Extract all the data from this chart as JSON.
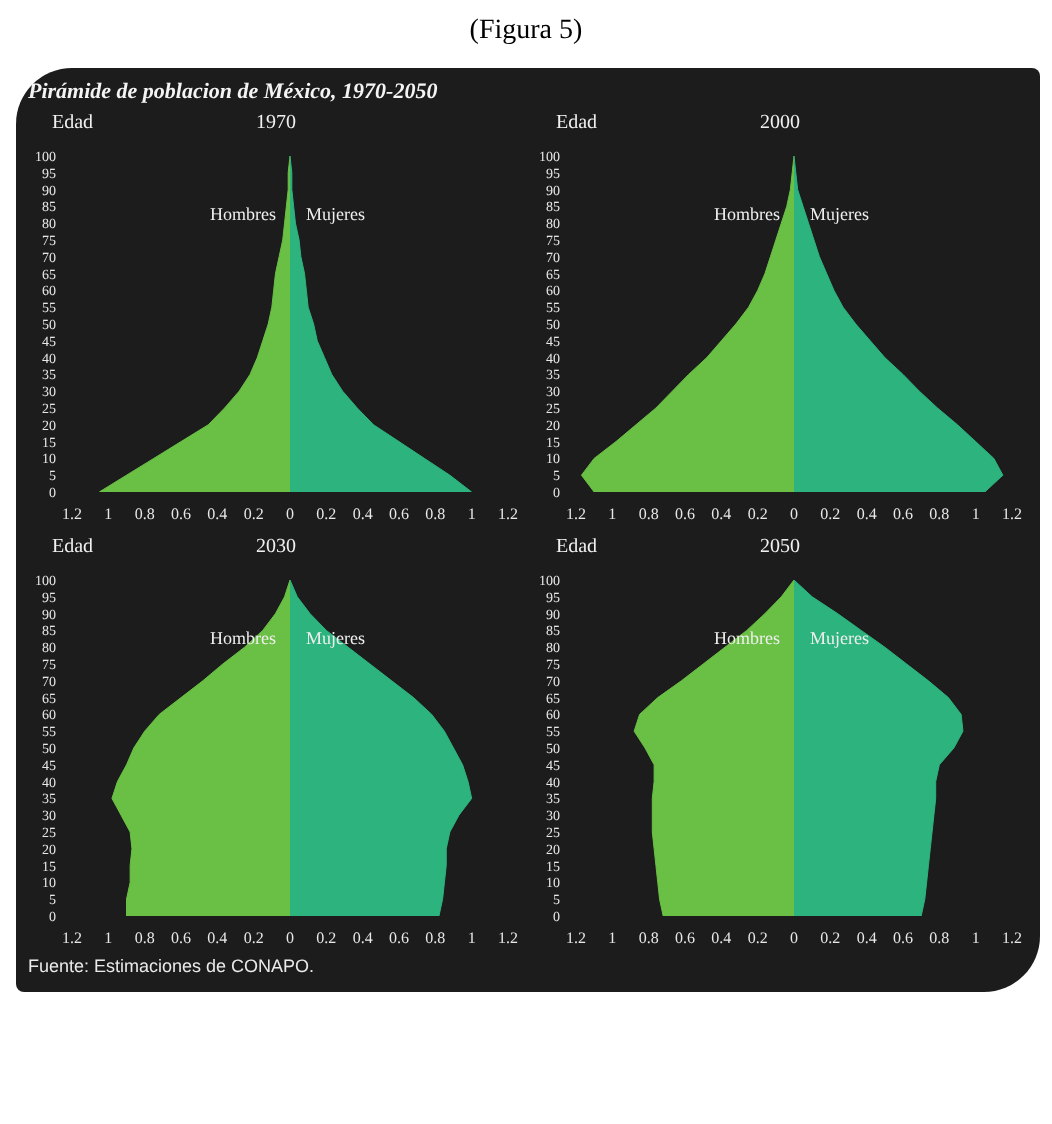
{
  "chart_data": [
    {
      "type": "area",
      "orientation": "horizontal",
      "title": "1970",
      "ylabel": "Edad",
      "annotations": [
        "(Figura 5)",
        "Pirámide de poblacion de México, 1970-2050",
        "Fuente: Estimaciones de CONAPO."
      ],
      "x": [
        0,
        5,
        10,
        15,
        20,
        25,
        30,
        35,
        40,
        45,
        50,
        55,
        60,
        65,
        70,
        75,
        80,
        85,
        90,
        95,
        100
      ],
      "series": [
        {
          "name": "Hombres",
          "color": "#6abf45",
          "values": [
            -1.05,
            -0.9,
            -0.75,
            -0.6,
            -0.45,
            -0.36,
            -0.28,
            -0.22,
            -0.18,
            -0.15,
            -0.12,
            -0.1,
            -0.09,
            -0.08,
            -0.06,
            -0.04,
            -0.03,
            -0.02,
            -0.01,
            -0.01,
            0
          ]
        },
        {
          "name": "Mujeres",
          "color": "#2db37e",
          "values": [
            1.0,
            0.88,
            0.74,
            0.6,
            0.46,
            0.37,
            0.29,
            0.23,
            0.19,
            0.15,
            0.13,
            0.1,
            0.09,
            0.08,
            0.06,
            0.05,
            0.03,
            0.02,
            0.01,
            0.01,
            0
          ]
        }
      ],
      "xlim": [
        -1.2,
        1.2
      ],
      "xticks": [
        {
          "value": -1.2,
          "label": "1.2"
        },
        {
          "value": -1,
          "label": "1"
        },
        {
          "value": -0.8,
          "label": "0.8"
        },
        {
          "value": -0.6,
          "label": "0.6"
        },
        {
          "value": -0.4,
          "label": "0.4"
        },
        {
          "value": -0.2,
          "label": "0.2"
        },
        0,
        0.2,
        0.4,
        0.6,
        0.8,
        1,
        1.2
      ],
      "ylim": [
        0,
        100
      ],
      "yticks": [
        0,
        5,
        10,
        15,
        20,
        25,
        30,
        35,
        40,
        45,
        50,
        55,
        60,
        65,
        70,
        75,
        80,
        85,
        90,
        95,
        100
      ]
    },
    {
      "type": "area",
      "orientation": "horizontal",
      "title": "2000",
      "ylabel": "Edad",
      "x": [
        0,
        5,
        10,
        15,
        20,
        25,
        30,
        35,
        40,
        45,
        50,
        55,
        60,
        65,
        70,
        75,
        80,
        85,
        90,
        95,
        100
      ],
      "series": [
        {
          "name": "Hombres",
          "color": "#6abf45",
          "values": [
            -1.1,
            -1.17,
            -1.1,
            -0.98,
            -0.87,
            -0.76,
            -0.67,
            -0.58,
            -0.48,
            -0.4,
            -0.32,
            -0.25,
            -0.2,
            -0.16,
            -0.13,
            -0.1,
            -0.07,
            -0.04,
            -0.02,
            -0.01,
            0
          ]
        },
        {
          "name": "Mujeres",
          "color": "#2db37e",
          "values": [
            1.05,
            1.15,
            1.1,
            1.0,
            0.9,
            0.79,
            0.69,
            0.6,
            0.5,
            0.42,
            0.34,
            0.27,
            0.22,
            0.18,
            0.14,
            0.11,
            0.08,
            0.05,
            0.02,
            0.01,
            0
          ]
        }
      ],
      "xlim": [
        -1.2,
        1.2
      ],
      "xticks": [
        {
          "value": -1.2,
          "label": "1.2"
        },
        {
          "value": -1,
          "label": "1"
        },
        {
          "value": -0.8,
          "label": "0.8"
        },
        {
          "value": -0.6,
          "label": "0.6"
        },
        {
          "value": -0.4,
          "label": "0.4"
        },
        {
          "value": -0.2,
          "label": "0.2"
        },
        0,
        0.2,
        0.4,
        0.6,
        0.8,
        1,
        1.2
      ],
      "ylim": [
        0,
        100
      ],
      "yticks": [
        0,
        5,
        10,
        15,
        20,
        25,
        30,
        35,
        40,
        45,
        50,
        55,
        60,
        65,
        70,
        75,
        80,
        85,
        90,
        95,
        100
      ]
    },
    {
      "type": "area",
      "orientation": "horizontal",
      "title": "2030",
      "ylabel": "Edad",
      "x": [
        0,
        5,
        10,
        15,
        20,
        25,
        30,
        35,
        40,
        45,
        50,
        55,
        60,
        65,
        70,
        75,
        80,
        85,
        90,
        95,
        100
      ],
      "series": [
        {
          "name": "Hombres",
          "color": "#6abf45",
          "values": [
            -0.9,
            -0.9,
            -0.88,
            -0.88,
            -0.87,
            -0.88,
            -0.93,
            -0.98,
            -0.95,
            -0.9,
            -0.86,
            -0.8,
            -0.72,
            -0.6,
            -0.48,
            -0.37,
            -0.25,
            -0.15,
            -0.08,
            -0.03,
            0
          ]
        },
        {
          "name": "Mujeres",
          "color": "#2db37e",
          "values": [
            0.82,
            0.84,
            0.85,
            0.86,
            0.86,
            0.88,
            0.93,
            1.0,
            0.98,
            0.95,
            0.9,
            0.85,
            0.78,
            0.68,
            0.56,
            0.44,
            0.32,
            0.2,
            0.11,
            0.04,
            0
          ]
        }
      ],
      "xlim": [
        -1.2,
        1.2
      ],
      "xticks": [
        {
          "value": -1.2,
          "label": "1.2"
        },
        {
          "value": -1,
          "label": "1"
        },
        {
          "value": -0.8,
          "label": "0.8"
        },
        {
          "value": -0.6,
          "label": "0.6"
        },
        {
          "value": -0.4,
          "label": "0.4"
        },
        {
          "value": -0.2,
          "label": "0.2"
        },
        0,
        0.2,
        0.4,
        0.6,
        0.8,
        1,
        1.2
      ],
      "ylim": [
        0,
        100
      ],
      "yticks": [
        0,
        5,
        10,
        15,
        20,
        25,
        30,
        35,
        40,
        45,
        50,
        55,
        60,
        65,
        70,
        75,
        80,
        85,
        90,
        95,
        100
      ]
    },
    {
      "type": "area",
      "orientation": "horizontal",
      "title": "2050",
      "ylabel": "Edad",
      "x": [
        0,
        5,
        10,
        15,
        20,
        25,
        30,
        35,
        40,
        45,
        50,
        55,
        60,
        65,
        70,
        75,
        80,
        85,
        90,
        95,
        100
      ],
      "series": [
        {
          "name": "Hombres",
          "color": "#6abf45",
          "values": [
            -0.72,
            -0.74,
            -0.75,
            -0.76,
            -0.77,
            -0.78,
            -0.78,
            -0.78,
            -0.77,
            -0.77,
            -0.82,
            -0.88,
            -0.85,
            -0.75,
            -0.62,
            -0.5,
            -0.38,
            -0.26,
            -0.16,
            -0.07,
            0
          ]
        },
        {
          "name": "Mujeres",
          "color": "#2db37e",
          "values": [
            0.7,
            0.72,
            0.73,
            0.74,
            0.75,
            0.76,
            0.77,
            0.78,
            0.78,
            0.8,
            0.88,
            0.93,
            0.92,
            0.85,
            0.74,
            0.62,
            0.5,
            0.37,
            0.24,
            0.1,
            0
          ]
        }
      ],
      "xlim": [
        -1.2,
        1.2
      ],
      "xticks": [
        {
          "value": -1.2,
          "label": "1.2"
        },
        {
          "value": -1,
          "label": "1"
        },
        {
          "value": -0.8,
          "label": "0.8"
        },
        {
          "value": -0.6,
          "label": "0.6"
        },
        {
          "value": -0.4,
          "label": "0.4"
        },
        {
          "value": -0.2,
          "label": "0.2"
        },
        0,
        0.2,
        0.4,
        0.6,
        0.8,
        1,
        1.2
      ],
      "ylim": [
        0,
        100
      ],
      "yticks": [
        0,
        5,
        10,
        15,
        20,
        25,
        30,
        35,
        40,
        45,
        50,
        55,
        60,
        65,
        70,
        75,
        80,
        85,
        90,
        95,
        100
      ]
    }
  ]
}
